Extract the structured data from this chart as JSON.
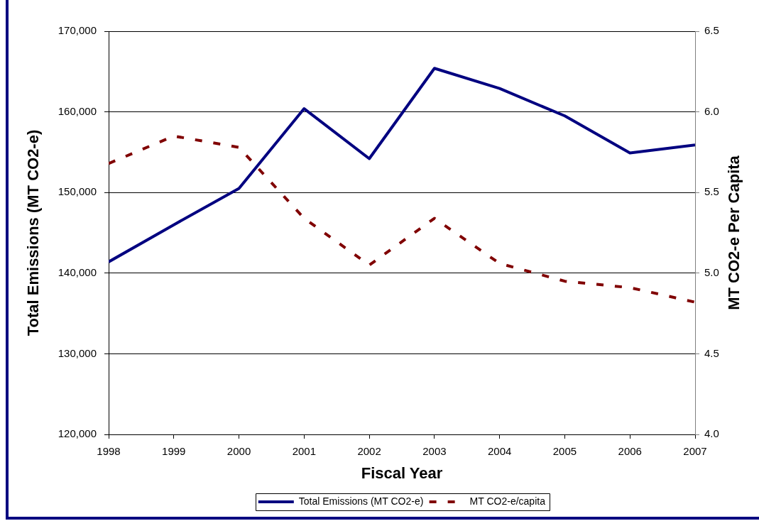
{
  "chart_data": {
    "type": "line",
    "xlabel": "Fiscal Year",
    "ylabel": "Total Emissions (MT CO2-e)",
    "y2label": "MT CO2-e Per Capita",
    "x": [
      1998,
      1999,
      2000,
      2001,
      2002,
      2003,
      2004,
      2005,
      2006,
      2007
    ],
    "xlim": [
      1998,
      2007
    ],
    "xticks": [
      1998,
      1999,
      2000,
      2001,
      2002,
      2003,
      2004,
      2005,
      2006,
      2007
    ],
    "ylim": [
      120000,
      170000
    ],
    "yticks": [
      {
        "value": 120000,
        "label": "120,000"
      },
      {
        "value": 130000,
        "label": "130,000"
      },
      {
        "value": 140000,
        "label": "140,000"
      },
      {
        "value": 150000,
        "label": "150,000"
      },
      {
        "value": 160000,
        "label": "160,000"
      },
      {
        "value": 170000,
        "label": "170,000"
      }
    ],
    "y2lim": [
      4.0,
      6.5
    ],
    "y2ticks": [
      {
        "value": 4.0,
        "label": "4.0"
      },
      {
        "value": 4.5,
        "label": "4.5"
      },
      {
        "value": 5.0,
        "label": "5.0"
      },
      {
        "value": 5.5,
        "label": "5.5"
      },
      {
        "value": 6.0,
        "label": "6.0"
      },
      {
        "value": 6.5,
        "label": "6.5"
      }
    ],
    "series": [
      {
        "name": "Total Emissions (MT CO2-e)",
        "color": "#000080",
        "line_style": "solid",
        "values": [
          141400,
          146000,
          150500,
          160400,
          154200,
          165400,
          162900,
          159500,
          154900,
          155900
        ]
      },
      {
        "name": "MT CO2-e/capita",
        "color": "#800000",
        "axis": "y2",
        "line_style": "dashed",
        "values": [
          5.68,
          5.85,
          5.78,
          5.34,
          5.05,
          5.34,
          5.06,
          4.95,
          4.91,
          4.82
        ]
      }
    ],
    "grid": "y",
    "legend": "bottom",
    "marker": "none"
  }
}
